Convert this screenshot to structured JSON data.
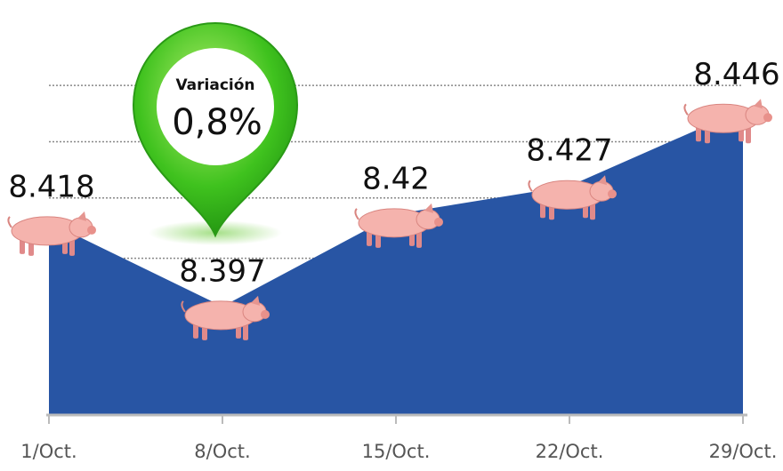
{
  "chart_data": {
    "type": "area",
    "categories": [
      "1/Oct.",
      "8/Oct.",
      "15/Oct.",
      "22/Oct.",
      "29/Oct."
    ],
    "values": [
      8.418,
      8.397,
      8.42,
      8.427,
      8.446
    ],
    "color": "#2855a4",
    "ylim": [
      8.37,
      8.46
    ],
    "yticks": [
      8.409,
      8.424,
      8.438,
      8.452
    ],
    "grid": true,
    "annotation": {
      "title": "Variación",
      "text": "0,8%"
    }
  }
}
